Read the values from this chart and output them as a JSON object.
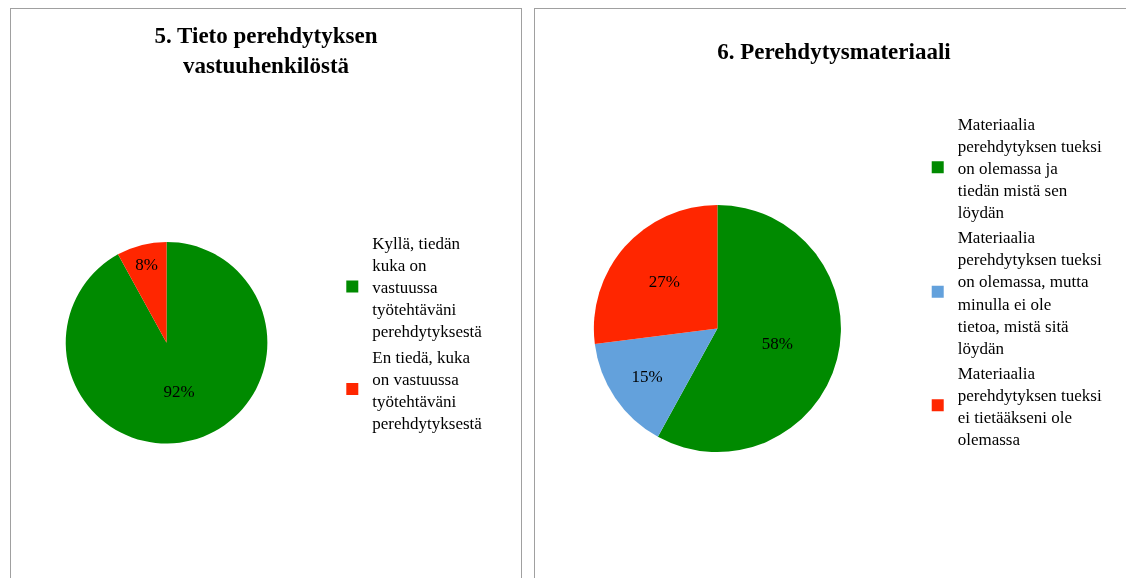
{
  "chart_data": [
    {
      "type": "pie",
      "title": "5. Tieto perehdytyksen vastuuhenkilöstä",
      "categories": [
        "Kyllä, tiedän kuka on vastuussa työtehtäväni perehdytyksestä",
        "En tiedä, kuka on vastuussa työtehtäväni perehdytyksestä"
      ],
      "values": [
        92,
        8
      ],
      "value_labels": [
        "92%",
        "8%"
      ],
      "colors": [
        "#008a00",
        "#ff2600"
      ],
      "legend": "right"
    },
    {
      "type": "pie",
      "title": "6. Perehdytysmateriaali",
      "categories": [
        "Materiaalia perehdytyksen tueksi on olemassa ja tiedän mistä sen löydän",
        "Materiaalia perehdytyksen tueksi on olemassa, mutta minulla ei ole tietoa, mistä sitä löydän",
        "Materiaalia perehdytyksen tueksi ei tietääkseni ole olemassa"
      ],
      "values": [
        58,
        15,
        27
      ],
      "value_labels": [
        "58%",
        "15%",
        "27%"
      ],
      "colors": [
        "#008a00",
        "#63a1dc",
        "#ff2600"
      ],
      "legend": "right"
    }
  ]
}
